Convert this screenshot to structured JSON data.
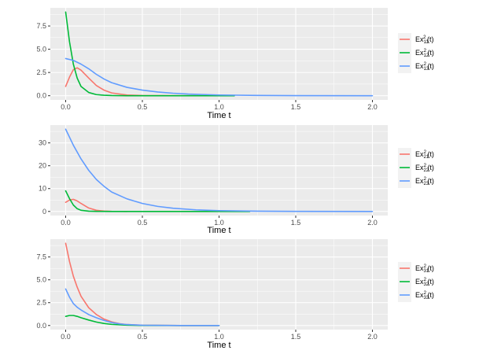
{
  "chart_data": [
    {
      "type": "line",
      "xlabel": "Time t",
      "ylabel": "",
      "xlim": [
        -0.1,
        2.1
      ],
      "ylim": [
        -0.45,
        9.45
      ],
      "x_ticks": [
        0.0,
        0.5,
        1.0,
        1.5,
        2.0
      ],
      "x_tick_labels": [
        "0.0",
        "0.5",
        "1.0",
        "1.5",
        "2.0"
      ],
      "y_ticks": [
        0.0,
        2.5,
        5.0,
        7.5
      ],
      "y_tick_labels": [
        "0.0",
        "2.5",
        "5.0",
        "7.5"
      ],
      "grid": true,
      "legend_position": "right",
      "series": [
        {
          "name": "Ex",
          "sub": "11",
          "sup": "2",
          "suffix": "(t)",
          "color": "#F8766D",
          "x": [
            0,
            0.025,
            0.05,
            0.075,
            0.1,
            0.15,
            0.2,
            0.25,
            0.3,
            0.4,
            0.5,
            0.75,
            1.0
          ],
          "y": [
            1.0,
            2.0,
            2.8,
            3.0,
            2.75,
            1.9,
            1.1,
            0.6,
            0.3,
            0.08,
            0.02,
            0.0,
            0.0
          ]
        },
        {
          "name": "Ex",
          "sub": "12",
          "sup": "2",
          "suffix": "(t)",
          "color": "#00BA38",
          "x": [
            0,
            0.025,
            0.05,
            0.075,
            0.1,
            0.15,
            0.2,
            0.25,
            0.3,
            0.4,
            0.5,
            0.8,
            1.1
          ],
          "y": [
            9.0,
            5.8,
            3.4,
            1.9,
            1.0,
            0.35,
            0.12,
            0.05,
            0.02,
            0.0,
            0.0,
            0.0,
            0.0
          ]
        },
        {
          "name": "Ex",
          "sub": "13",
          "sup": "2",
          "suffix": "(t)",
          "color": "#619CFF",
          "x": [
            0,
            0.05,
            0.1,
            0.15,
            0.2,
            0.25,
            0.3,
            0.4,
            0.5,
            0.6,
            0.7,
            0.8,
            1.0,
            1.25,
            1.5,
            2.0
          ],
          "y": [
            4.0,
            3.8,
            3.4,
            2.9,
            2.3,
            1.8,
            1.4,
            0.9,
            0.6,
            0.4,
            0.27,
            0.18,
            0.08,
            0.03,
            0.01,
            0.0
          ]
        }
      ]
    },
    {
      "type": "line",
      "xlabel": "Time t",
      "ylabel": "",
      "xlim": [
        -0.1,
        2.1
      ],
      "ylim": [
        -1.8,
        37.8
      ],
      "x_ticks": [
        0.0,
        0.5,
        1.0,
        1.5,
        2.0
      ],
      "x_tick_labels": [
        "0.0",
        "0.5",
        "1.0",
        "1.5",
        "2.0"
      ],
      "y_ticks": [
        0,
        10,
        20,
        30
      ],
      "y_tick_labels": [
        "0",
        "10",
        "20",
        "30"
      ],
      "grid": true,
      "legend_position": "right",
      "series": [
        {
          "name": "Ex",
          "sub": "21",
          "sup": "2",
          "suffix": "(t)",
          "color": "#F8766D",
          "x": [
            0,
            0.025,
            0.05,
            0.075,
            0.1,
            0.15,
            0.2,
            0.25,
            0.3,
            0.4
          ],
          "y": [
            4.0,
            5.0,
            5.3,
            4.6,
            3.5,
            1.5,
            0.5,
            0.15,
            0.05,
            0.0
          ]
        },
        {
          "name": "Ex",
          "sub": "22",
          "sup": "2",
          "suffix": "(t)",
          "color": "#00BA38",
          "x": [
            0,
            0.025,
            0.05,
            0.075,
            0.1,
            0.15,
            0.2,
            0.3,
            0.5,
            0.8,
            1.2
          ],
          "y": [
            9.0,
            5.6,
            2.8,
            1.2,
            0.5,
            0.1,
            0.03,
            0.0,
            0.0,
            0.0,
            0.0
          ]
        },
        {
          "name": "Ex",
          "sub": "23",
          "sup": "2",
          "suffix": "(t)",
          "color": "#619CFF",
          "x": [
            0,
            0.05,
            0.1,
            0.15,
            0.2,
            0.25,
            0.3,
            0.4,
            0.5,
            0.6,
            0.7,
            0.85,
            1.0,
            1.25,
            1.5,
            2.0
          ],
          "y": [
            36.0,
            29.0,
            23.0,
            18.0,
            14.0,
            11.0,
            8.5,
            5.5,
            3.5,
            2.2,
            1.4,
            0.7,
            0.35,
            0.1,
            0.03,
            0.0
          ]
        }
      ]
    },
    {
      "type": "line",
      "xlabel": "Time t",
      "ylabel": "",
      "xlim": [
        -0.1,
        2.1
      ],
      "ylim": [
        -0.45,
        9.45
      ],
      "x_ticks": [
        0.0,
        0.5,
        1.0,
        1.5,
        2.0
      ],
      "x_tick_labels": [
        "0.0",
        "0.5",
        "1.0",
        "1.5",
        "2.0"
      ],
      "y_ticks": [
        0.0,
        2.5,
        5.0,
        7.5
      ],
      "y_tick_labels": [
        "0.0",
        "2.5",
        "5.0",
        "7.5"
      ],
      "grid": true,
      "legend_position": "right",
      "series": [
        {
          "name": "Ex",
          "sub": "31",
          "sup": "2",
          "suffix": "(t)",
          "color": "#F8766D",
          "x": [
            0,
            0.025,
            0.05,
            0.075,
            0.1,
            0.15,
            0.2,
            0.25,
            0.3,
            0.35,
            0.4,
            0.5,
            0.75,
            1.0
          ],
          "y": [
            9.0,
            7.0,
            5.4,
            4.2,
            3.2,
            1.95,
            1.2,
            0.7,
            0.4,
            0.2,
            0.1,
            0.03,
            0.0,
            0.0
          ]
        },
        {
          "name": "Ex",
          "sub": "32",
          "sup": "2",
          "suffix": "(t)",
          "color": "#00BA38",
          "x": [
            0,
            0.025,
            0.05,
            0.075,
            0.1,
            0.15,
            0.2,
            0.25,
            0.3,
            0.4,
            0.5,
            0.75,
            1.0
          ],
          "y": [
            1.0,
            1.1,
            1.1,
            1.0,
            0.85,
            0.6,
            0.38,
            0.22,
            0.12,
            0.04,
            0.01,
            0.0,
            0.0
          ]
        },
        {
          "name": "Ex",
          "sub": "33",
          "sup": "2",
          "suffix": "(t)",
          "color": "#619CFF",
          "x": [
            0,
            0.025,
            0.05,
            0.075,
            0.1,
            0.15,
            0.2,
            0.25,
            0.3,
            0.35,
            0.4,
            0.5,
            0.75,
            1.0
          ],
          "y": [
            4.0,
            3.1,
            2.4,
            2.0,
            1.7,
            1.2,
            0.85,
            0.55,
            0.32,
            0.18,
            0.1,
            0.03,
            0.0,
            0.0
          ]
        }
      ]
    }
  ]
}
